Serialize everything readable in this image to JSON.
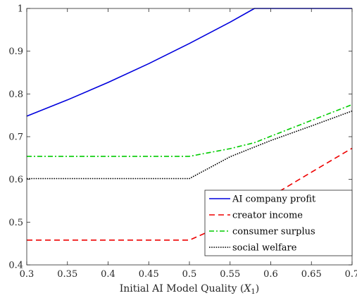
{
  "chart_data": {
    "type": "line",
    "xlabel_main": "Initial AI Model Quality (",
    "xlabel_var": "X",
    "xlabel_sub": "1",
    "xlabel_end": ")",
    "xlim": [
      0.3,
      0.7
    ],
    "ylim": [
      0.4,
      1.0
    ],
    "x_ticks": [
      0.3,
      0.35,
      0.4,
      0.45,
      0.5,
      0.55,
      0.6,
      0.65,
      0.7
    ],
    "x_tick_labels": [
      "0.3",
      "0.35",
      "0.4",
      "0.45",
      "0.5",
      "0.55",
      "0.6",
      "0.65",
      "0.7"
    ],
    "y_ticks": [
      0.4,
      0.5,
      0.6,
      0.7,
      0.8,
      0.9,
      1.0
    ],
    "y_tick_labels": [
      "0.4",
      "0.5",
      "0.6",
      "0.7",
      "0.8",
      "0.9",
      "1"
    ],
    "grid": false,
    "legend_position": "bottom-right",
    "series": [
      {
        "name": "AI company profit",
        "color": "#0000dd",
        "dash": "solid",
        "x": [
          0.3,
          0.35,
          0.4,
          0.45,
          0.5,
          0.55,
          0.58,
          0.59,
          0.65,
          0.7
        ],
        "y": [
          0.748,
          0.786,
          0.827,
          0.871,
          0.918,
          0.968,
          1.0,
          1.0,
          1.0,
          1.0
        ]
      },
      {
        "name": "creator income",
        "color": "#ee0000",
        "dash": "dashed",
        "x": [
          0.3,
          0.4,
          0.5,
          0.55,
          0.6,
          0.65,
          0.7
        ],
        "y": [
          0.458,
          0.458,
          0.458,
          0.5,
          0.56,
          0.617,
          0.673
        ]
      },
      {
        "name": "consumer surplus",
        "color": "#00cc00",
        "dash": "dashdot",
        "x": [
          0.3,
          0.4,
          0.5,
          0.55,
          0.58,
          0.6,
          0.65,
          0.7
        ],
        "y": [
          0.654,
          0.654,
          0.654,
          0.672,
          0.686,
          0.701,
          0.738,
          0.775
        ]
      },
      {
        "name": "social welfare",
        "color": "#000000",
        "dash": "dotted",
        "x": [
          0.3,
          0.4,
          0.5,
          0.55,
          0.6,
          0.65,
          0.7
        ],
        "y": [
          0.602,
          0.602,
          0.602,
          0.653,
          0.691,
          0.725,
          0.76
        ]
      }
    ]
  }
}
